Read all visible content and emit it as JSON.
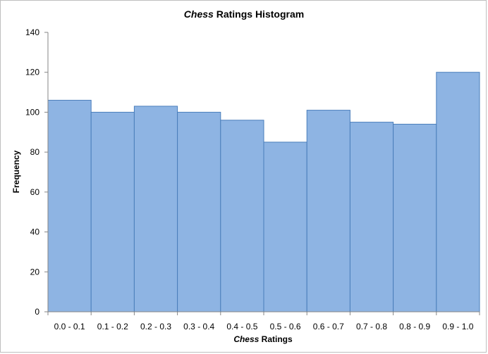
{
  "chart_data": {
    "type": "bar",
    "title_parts": [
      "Chess",
      " Ratings Histogram"
    ],
    "xlabel_parts": [
      "Chess",
      " Ratings"
    ],
    "ylabel": "Frequency",
    "categories": [
      "0.0 - 0.1",
      "0.1 - 0.2",
      "0.2 - 0.3",
      "0.3 - 0.4",
      "0.4 - 0.5",
      "0.5 - 0.6",
      "0.6 - 0.7",
      "0.7 - 0.8",
      "0.8 - 0.9",
      "0.9 - 1.0"
    ],
    "values": [
      106,
      100,
      103,
      100,
      96,
      85,
      101,
      95,
      94,
      120
    ],
    "ylim": [
      0,
      140
    ],
    "yticks": [
      0,
      20,
      40,
      60,
      80,
      100,
      120,
      140
    ],
    "grid": false,
    "legend": "none",
    "bar_color": "#8eb4e3",
    "bar_edge_color": "#4a7ebb"
  }
}
